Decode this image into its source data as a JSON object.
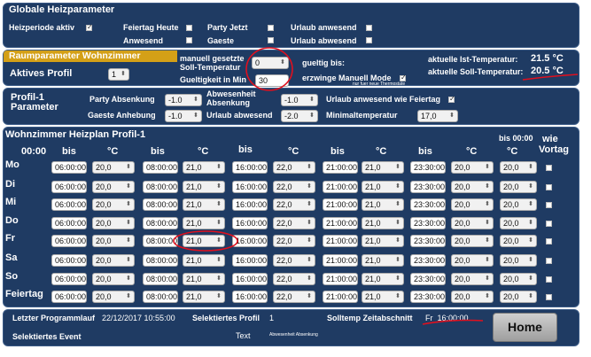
{
  "global": {
    "title": "Globale Heizparameter",
    "heizperiode_label": "Heizperiode aktiv",
    "feiertag_label": "Feiertag Heute",
    "anwesend_label": "Anwesend",
    "party_label": "Party Jetzt",
    "gaeste_label": "Gaeste",
    "urlaub_anwesend_label": "Urlaub anwesend",
    "urlaub_abwesend_label": "Urlaub abwesend"
  },
  "room": {
    "title": "Raumparameter Wohnzimmer",
    "aktives_profil_label": "Aktives Profil",
    "aktives_profil_value": "1",
    "manuell_label_1": "manuell gesetzte",
    "manuell_label_2": "Soll-Temperatur",
    "manuell_value": "0",
    "gueltigkeit_label": "Gueltigkeit in Min",
    "gueltigkeit_value": "30",
    "gueltig_bis_label": "gueltig bis:",
    "erzwinge_label": "erzwinge Manuell Mode",
    "erzwinge_sub": "nur fuer neue Thermostate",
    "ist_label": "aktuelle Ist-Temperatur:",
    "ist_value": "21.5  °C",
    "soll_label": "aktuelle Soll-Temperatur:",
    "soll_value": "20.5  °C"
  },
  "profil": {
    "title_1": "Profil-1",
    "title_2": "Parameter",
    "party_absenkung_label": "Party Absenkung",
    "party_absenkung_value": "-1.0",
    "gaeste_anhebung_label": "Gaeste Anhebung",
    "gaeste_anhebung_value": "-1.0",
    "abwesenheit_label_1": "Abwesenheit",
    "abwesenheit_label_2": "Absenkung",
    "abwesenheit_value": "-1.0",
    "urlaub_abwesend_label": "Urlaub abwesend",
    "urlaub_abwesend_value": "-2.0",
    "urlaub_feiertag_label": "Urlaub anwesend wie Feiertag",
    "minimal_label": "Minimaltemperatur",
    "minimal_value": "17,0"
  },
  "schedule": {
    "title": "Wohnzimmer Heizplan Profil-1",
    "start_time": "00:00",
    "col_bis": "bis",
    "col_c": "°C",
    "bis_0000": "bis 00:00",
    "wie_vortag": "wie",
    "wie_vortag_2": "Vortag",
    "rows": [
      {
        "day": "Mo",
        "cells": [
          [
            "06:00:00",
            "20,0"
          ],
          [
            "08:00:00",
            "21,0"
          ],
          [
            "16:00:00",
            "22,0"
          ],
          [
            "21:00:00",
            "21,0"
          ],
          [
            "23:30:00",
            "20,0"
          ]
        ],
        "last": "20,0",
        "vortag": false
      },
      {
        "day": "Di",
        "cells": [
          [
            "06:00:00",
            "20,0"
          ],
          [
            "08:00:00",
            "21,0"
          ],
          [
            "16:00:00",
            "22,0"
          ],
          [
            "21:00:00",
            "21,0"
          ],
          [
            "23:30:00",
            "20,0"
          ]
        ],
        "last": "20,0",
        "vortag": false
      },
      {
        "day": "Mi",
        "cells": [
          [
            "06:00:00",
            "20,0"
          ],
          [
            "08:00:00",
            "21,0"
          ],
          [
            "16:00:00",
            "22,0"
          ],
          [
            "21:00:00",
            "21,0"
          ],
          [
            "23:30:00",
            "20,0"
          ]
        ],
        "last": "20,0",
        "vortag": false
      },
      {
        "day": "Do",
        "cells": [
          [
            "06:00:00",
            "20,0"
          ],
          [
            "08:00:00",
            "21,0"
          ],
          [
            "16:00:00",
            "22,0"
          ],
          [
            "21:00:00",
            "21,0"
          ],
          [
            "23:30:00",
            "20,0"
          ]
        ],
        "last": "20,0",
        "vortag": false
      },
      {
        "day": "Fr",
        "cells": [
          [
            "06:00:00",
            "20,0"
          ],
          [
            "08:00:00",
            "21,0"
          ],
          [
            "16:00:00",
            "22,0"
          ],
          [
            "21:00:00",
            "21,0"
          ],
          [
            "23:30:00",
            "20,0"
          ]
        ],
        "last": "20,0",
        "vortag": false
      },
      {
        "day": "Sa",
        "cells": [
          [
            "06:00:00",
            "20,0"
          ],
          [
            "08:00:00",
            "21,0"
          ],
          [
            "16:00:00",
            "22,0"
          ],
          [
            "21:00:00",
            "21,0"
          ],
          [
            "23:30:00",
            "20,0"
          ]
        ],
        "last": "20,0",
        "vortag": false
      },
      {
        "day": "So",
        "cells": [
          [
            "06:00:00",
            "20,0"
          ],
          [
            "08:00:00",
            "21,0"
          ],
          [
            "16:00:00",
            "22,0"
          ],
          [
            "21:00:00",
            "21,0"
          ],
          [
            "23:30:00",
            "20,0"
          ]
        ],
        "last": "20,0",
        "vortag": false
      },
      {
        "day": "Feiertag",
        "cells": [
          [
            "06:00:00",
            "20,0"
          ],
          [
            "08:00:00",
            "21,0"
          ],
          [
            "16:00:00",
            "22,0"
          ],
          [
            "21:00:00",
            "21,0"
          ],
          [
            "23:30:00",
            "20,0"
          ]
        ],
        "last": "20,0",
        "vortag": false
      }
    ]
  },
  "footer": {
    "letzter_label": "Letzter Programmlauf",
    "letzter_value": "22/12/2017 10:55:00",
    "sel_profil_label": "Selektiertes Profil",
    "sel_profil_value": "1",
    "solltemp_label": "Solltemp Zeitabschnitt",
    "solltemp_value": "Fr_16:00:00",
    "sel_event_label": "Selektiertes Event",
    "text_label": "Text",
    "text_value": "Abwesenheit Absenkung",
    "home_label": "Home"
  },
  "colors": {
    "panel": "#1f3b63",
    "room_title_bg": "#d4a017",
    "annotation": "#e0101e"
  }
}
